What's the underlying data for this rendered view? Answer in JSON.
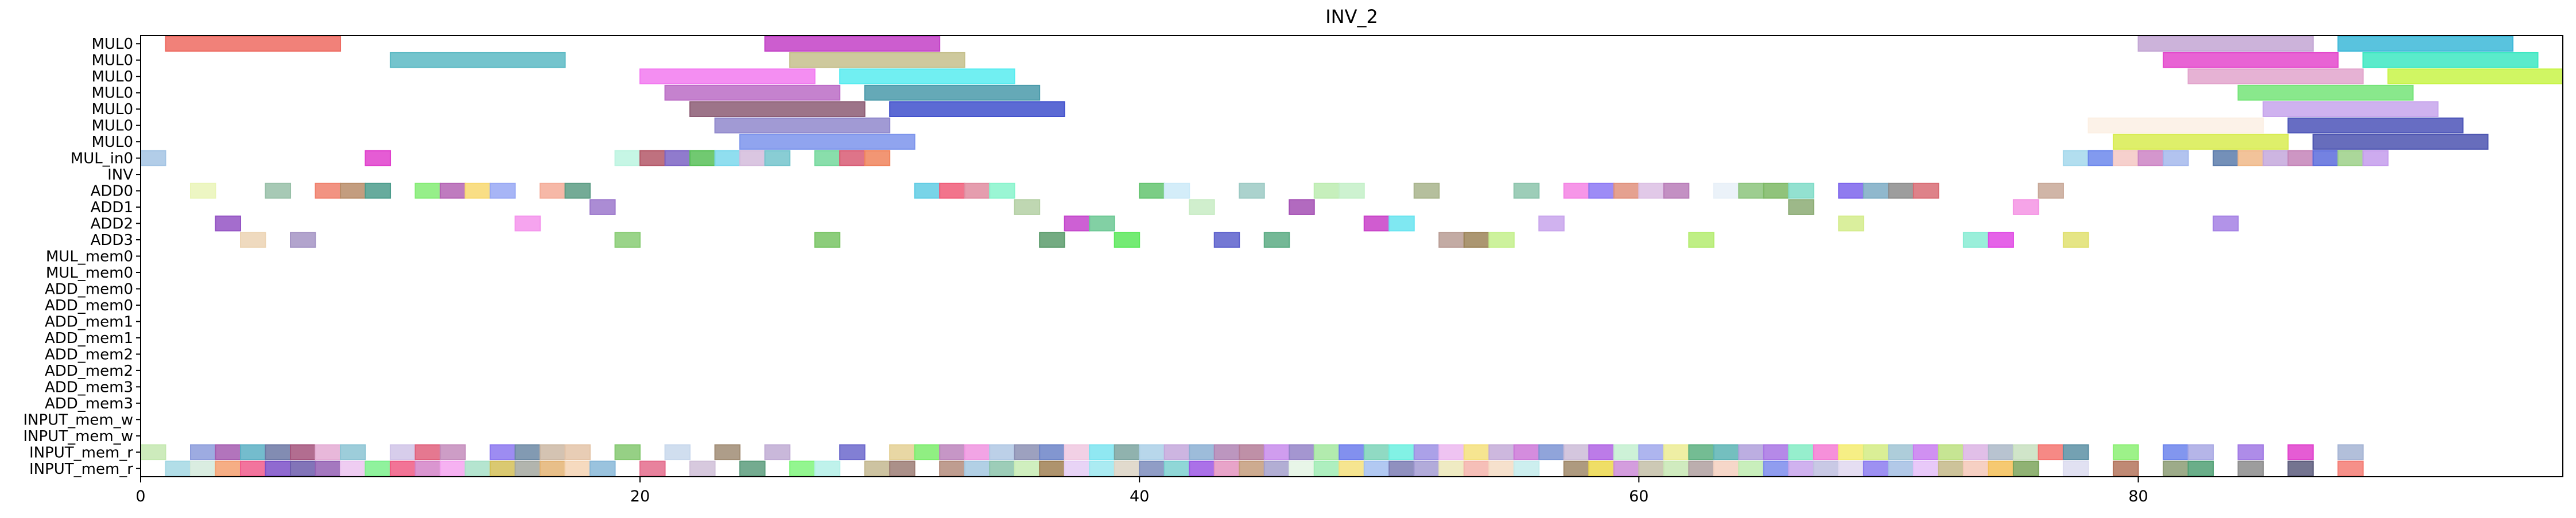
{
  "chart_data": {
    "type": "gantt",
    "title": "INV_2",
    "xlabel": "",
    "ylabel": "",
    "xlim": [
      0,
      97
    ],
    "grid": false,
    "legend": "none",
    "xticks": [
      0,
      20,
      40,
      60,
      80
    ],
    "rows": [
      "MUL0",
      "MUL0",
      "MUL0",
      "MUL0",
      "MUL0",
      "MUL0",
      "MUL0",
      "MUL_in0",
      "INV",
      "ADD0",
      "ADD1",
      "ADD2",
      "ADD3",
      "MUL_mem0",
      "MUL_mem0",
      "ADD_mem0",
      "ADD_mem0",
      "ADD_mem1",
      "ADD_mem1",
      "ADD_mem2",
      "ADD_mem2",
      "ADD_mem3",
      "ADD_mem3",
      "INPUT_mem_w",
      "INPUT_mem_w",
      "INPUT_mem_r",
      "INPUT_mem_r"
    ],
    "bars": [
      [
        0,
        1,
        8,
        "#ee6b62"
      ],
      [
        0,
        25,
        32,
        "#c341c7"
      ],
      [
        0,
        80,
        87,
        "#c3a6d4"
      ],
      [
        0,
        88,
        95,
        "#3cb8d8"
      ],
      [
        1,
        10,
        17,
        "#5cbac4"
      ],
      [
        1,
        26,
        33,
        "#c5c08c"
      ],
      [
        1,
        81,
        88,
        "#e448cc"
      ],
      [
        1,
        89,
        96,
        "#3de8c2"
      ],
      [
        2,
        20,
        27,
        "#f27af0"
      ],
      [
        2,
        28,
        35,
        "#58ecf0"
      ],
      [
        2,
        82,
        89,
        "#e2a4cc"
      ],
      [
        2,
        90,
        97,
        "#c8f448"
      ],
      [
        3,
        21,
        28,
        "#bb6cc6"
      ],
      [
        3,
        29,
        36,
        "#4a9aaa"
      ],
      [
        3,
        84,
        91,
        "#74e478"
      ],
      [
        4,
        22,
        29,
        "#8c5c74"
      ],
      [
        4,
        30,
        37,
        "#4050cc"
      ],
      [
        4,
        85,
        92,
        "#c7a4ec"
      ],
      [
        5,
        23,
        30,
        "#9088cc"
      ],
      [
        5,
        86,
        93,
        "#4c54b8"
      ],
      [
        5,
        78,
        85,
        "#fcf0e4"
      ],
      [
        6,
        24,
        31,
        "#7c94ec"
      ],
      [
        6,
        79,
        86,
        "#d8ec50"
      ],
      [
        6,
        87,
        94,
        "#4c54b0"
      ],
      [
        7,
        0,
        1,
        "#a4c4e4"
      ],
      [
        7,
        9,
        10,
        "#e040cc"
      ],
      [
        7,
        19,
        20,
        "#bcf4e0"
      ],
      [
        7,
        20,
        21,
        "#b45868"
      ],
      [
        7,
        21,
        22,
        "#7c64c4"
      ],
      [
        7,
        22,
        23,
        "#58c058"
      ],
      [
        7,
        23,
        24,
        "#7cd8ec"
      ],
      [
        7,
        24,
        25,
        "#d4bcdc"
      ],
      [
        7,
        25,
        26,
        "#74c4cc"
      ],
      [
        7,
        27,
        28,
        "#74d89c"
      ],
      [
        7,
        28,
        29,
        "#d85c74"
      ],
      [
        7,
        29,
        30,
        "#f0845c"
      ],
      [
        7,
        77,
        78,
        "#a4d8ec"
      ],
      [
        7,
        78,
        79,
        "#6c88ec"
      ],
      [
        7,
        79,
        80,
        "#f4c8c4"
      ],
      [
        7,
        80,
        81,
        "#cc84c4"
      ],
      [
        7,
        81,
        82,
        "#a4b8ec"
      ],
      [
        7,
        83,
        84,
        "#5c7cac"
      ],
      [
        7,
        84,
        85,
        "#f0b888"
      ],
      [
        7,
        85,
        86,
        "#c4a8dc"
      ],
      [
        7,
        86,
        87,
        "#c484b8"
      ],
      [
        7,
        87,
        88,
        "#5c6cdc"
      ],
      [
        7,
        88,
        89,
        "#9cd088"
      ],
      [
        7,
        89,
        90,
        "#c49cec"
      ],
      [
        9,
        2,
        3,
        "#eaf5b8"
      ],
      [
        9,
        5,
        6,
        "#98c0a8"
      ],
      [
        9,
        7,
        8,
        "#f0806c"
      ],
      [
        9,
        8,
        9,
        "#b88c68"
      ],
      [
        9,
        9,
        10,
        "#4c9c8c"
      ],
      [
        9,
        11,
        12,
        "#84ec74"
      ],
      [
        9,
        12,
        13,
        "#b464b4"
      ],
      [
        9,
        13,
        14,
        "#f8d870"
      ],
      [
        9,
        14,
        15,
        "#98a8f4"
      ],
      [
        9,
        16,
        17,
        "#f4ac98"
      ],
      [
        9,
        17,
        18,
        "#5c9c84"
      ],
      [
        9,
        31,
        32,
        "#60cce4"
      ],
      [
        9,
        32,
        33,
        "#f05c78"
      ],
      [
        9,
        33,
        34,
        "#e08ca0"
      ],
      [
        9,
        34,
        35,
        "#88f4cc"
      ],
      [
        9,
        40,
        41,
        "#64c470"
      ],
      [
        9,
        41,
        42,
        "#cceaf8"
      ],
      [
        9,
        44,
        45,
        "#9ccac4"
      ],
      [
        9,
        47,
        48,
        "#bcecb0"
      ],
      [
        9,
        48,
        49,
        "#c4f0c8"
      ],
      [
        9,
        51,
        52,
        "#a8b48c"
      ],
      [
        9,
        55,
        56,
        "#8cc4ac"
      ],
      [
        9,
        57,
        58,
        "#f484e4"
      ],
      [
        9,
        58,
        59,
        "#8c78f4"
      ],
      [
        9,
        59,
        60,
        "#e0907c"
      ],
      [
        9,
        60,
        61,
        "#dcc0e4"
      ],
      [
        9,
        61,
        62,
        "#b87cb8"
      ],
      [
        9,
        63,
        64,
        "#e8f0f8"
      ],
      [
        9,
        64,
        65,
        "#8cc47c"
      ],
      [
        9,
        65,
        66,
        "#7cb864"
      ],
      [
        9,
        66,
        67,
        "#80dcc8"
      ],
      [
        9,
        68,
        69,
        "#7c64ec"
      ],
      [
        9,
        69,
        70,
        "#7cacc4"
      ],
      [
        9,
        70,
        71,
        "#8c8c8c"
      ],
      [
        9,
        71,
        72,
        "#d86c74"
      ],
      [
        9,
        76,
        77,
        "#c8a898"
      ],
      [
        10,
        18,
        19,
        "#9c78cc"
      ],
      [
        10,
        35,
        36,
        "#b4d0a4"
      ],
      [
        10,
        42,
        43,
        "#c8ecc4"
      ],
      [
        10,
        46,
        47,
        "#a450b4"
      ],
      [
        10,
        66,
        67,
        "#8cac74"
      ],
      [
        10,
        75,
        76,
        "#f494e4"
      ],
      [
        11,
        3,
        4,
        "#9454c4"
      ],
      [
        11,
        15,
        16,
        "#f494ec"
      ],
      [
        11,
        37,
        38,
        "#c444cc"
      ],
      [
        11,
        38,
        39,
        "#6cc894"
      ],
      [
        11,
        49,
        50,
        "#c840c8"
      ],
      [
        11,
        50,
        51,
        "#68e4f0"
      ],
      [
        11,
        56,
        57,
        "#c8a4ec"
      ],
      [
        11,
        68,
        69,
        "#d4ec8c"
      ],
      [
        11,
        83,
        84,
        "#a480e4"
      ],
      [
        12,
        4,
        5,
        "#ecd4b4"
      ],
      [
        12,
        6,
        7,
        "#a494c4"
      ],
      [
        12,
        19,
        20,
        "#88cc74"
      ],
      [
        12,
        27,
        28,
        "#78c464"
      ],
      [
        12,
        36,
        37,
        "#5c9c6c"
      ],
      [
        12,
        39,
        40,
        "#5ce85c"
      ],
      [
        12,
        43,
        44,
        "#5c60cc"
      ],
      [
        12,
        45,
        46,
        "#5cac84"
      ],
      [
        12,
        52,
        53,
        "#b89c94"
      ],
      [
        12,
        53,
        54,
        "#9c8458"
      ],
      [
        12,
        54,
        55,
        "#c4f08c"
      ],
      [
        12,
        62,
        63,
        "#b4ec70"
      ],
      [
        12,
        73,
        74,
        "#88ecd4"
      ],
      [
        12,
        74,
        75,
        "#e048e4"
      ],
      [
        12,
        77,
        78,
        "#e0e070"
      ],
      [
        25,
        0,
        1,
        "#c4e8b0"
      ],
      [
        25,
        2,
        3,
        "#8c9cdc"
      ],
      [
        25,
        3,
        4,
        "#a45cb0"
      ],
      [
        25,
        4,
        5,
        "#5cb0c4"
      ],
      [
        25,
        5,
        6,
        "#6c78a4"
      ],
      [
        25,
        6,
        7,
        "#a4547c"
      ],
      [
        25,
        7,
        8,
        "#e4acd4"
      ],
      [
        25,
        8,
        9,
        "#8cc4d4"
      ],
      [
        25,
        10,
        11,
        "#d0c4e8"
      ],
      [
        25,
        11,
        12,
        "#e0607c"
      ],
      [
        25,
        12,
        13,
        "#c48cbc"
      ],
      [
        25,
        14,
        15,
        "#8c78f0"
      ],
      [
        25,
        15,
        16,
        "#6c88a4"
      ],
      [
        25,
        16,
        17,
        "#ccb8a4"
      ],
      [
        25,
        17,
        18,
        "#e4c4a8"
      ],
      [
        25,
        19,
        20,
        "#84c870"
      ],
      [
        25,
        21,
        22,
        "#c8d8ec"
      ],
      [
        25,
        23,
        24,
        "#a08c74"
      ],
      [
        25,
        25,
        26,
        "#c0acd4"
      ],
      [
        25,
        28,
        29,
        "#6c68cc"
      ],
      [
        25,
        30,
        31,
        "#e4d094"
      ],
      [
        25,
        31,
        32,
        "#7cec6c"
      ],
      [
        25,
        32,
        33,
        "#bc84bc"
      ],
      [
        25,
        33,
        34,
        "#f094e0"
      ],
      [
        25,
        34,
        35,
        "#b0c8e4"
      ],
      [
        25,
        35,
        36,
        "#8c90b4"
      ],
      [
        25,
        36,
        37,
        "#6c84c8"
      ],
      [
        25,
        37,
        38,
        "#f0c8e0"
      ],
      [
        25,
        38,
        39,
        "#7ce4f0"
      ],
      [
        25,
        39,
        40,
        "#7ca4a0"
      ],
      [
        25,
        40,
        41,
        "#acd0e8"
      ],
      [
        25,
        41,
        42,
        "#c4a8dc"
      ],
      [
        25,
        42,
        43,
        "#8cb0d4"
      ],
      [
        25,
        43,
        44,
        "#b084b4"
      ],
      [
        25,
        44,
        45,
        "#b47c98"
      ],
      [
        25,
        45,
        46,
        "#c88cec"
      ],
      [
        25,
        46,
        47,
        "#9484c8"
      ],
      [
        25,
        47,
        48,
        "#a4e8a0"
      ],
      [
        25,
        48,
        49,
        "#6c7cec"
      ],
      [
        25,
        49,
        50,
        "#7cd4b8"
      ],
      [
        25,
        50,
        51,
        "#6cf0e0"
      ],
      [
        25,
        51,
        52,
        "#9c90e4"
      ],
      [
        25,
        52,
        53,
        "#ecb8f0"
      ],
      [
        25,
        53,
        54,
        "#f4e07c"
      ],
      [
        25,
        54,
        55,
        "#c4acd8"
      ],
      [
        25,
        55,
        56,
        "#cc78d8"
      ],
      [
        25,
        56,
        57,
        "#7c94d4"
      ],
      [
        25,
        57,
        58,
        "#ccbcd8"
      ],
      [
        25,
        58,
        59,
        "#b064e4"
      ],
      [
        25,
        59,
        60,
        "#c4f0d0"
      ],
      [
        25,
        60,
        61,
        "#a0a8ec"
      ],
      [
        25,
        61,
        62,
        "#ecec94"
      ],
      [
        25,
        62,
        63,
        "#5cb080"
      ],
      [
        25,
        63,
        64,
        "#5cb4b4"
      ],
      [
        25,
        64,
        65,
        "#b0a0dc"
      ],
      [
        25,
        65,
        66,
        "#a874e4"
      ],
      [
        25,
        66,
        67,
        "#84ecc4"
      ],
      [
        25,
        67,
        68,
        "#f47cd4"
      ],
      [
        25,
        68,
        69,
        "#f4ec70"
      ],
      [
        25,
        69,
        70,
        "#d4ec84"
      ],
      [
        25,
        70,
        71,
        "#a0c4d4"
      ],
      [
        25,
        71,
        72,
        "#c87cf0"
      ],
      [
        25,
        72,
        73,
        "#bce080"
      ],
      [
        25,
        73,
        74,
        "#dcb4e4"
      ],
      [
        25,
        74,
        75,
        "#acb8c8"
      ],
      [
        25,
        75,
        76,
        "#c8e0c0"
      ],
      [
        25,
        76,
        77,
        "#f47470"
      ],
      [
        25,
        77,
        78,
        "#5c90a4"
      ],
      [
        25,
        79,
        80,
        "#8cf074"
      ],
      [
        25,
        81,
        82,
        "#6c84ec"
      ],
      [
        25,
        82,
        83,
        "#a8a8e4"
      ],
      [
        25,
        84,
        85,
        "#a078e4"
      ],
      [
        25,
        86,
        87,
        "#e040cc"
      ],
      [
        25,
        88,
        89,
        "#a4b4d4"
      ],
      [
        26,
        1,
        2,
        "#a4d8e4"
      ],
      [
        26,
        2,
        3,
        "#d4eadc"
      ],
      [
        26,
        3,
        4,
        "#f4a070"
      ],
      [
        26,
        4,
        5,
        "#f05c8c"
      ],
      [
        26,
        5,
        6,
        "#7c50c8"
      ],
      [
        26,
        6,
        7,
        "#6c5cac"
      ],
      [
        26,
        7,
        8,
        "#9460b4"
      ],
      [
        26,
        8,
        9,
        "#ecc4f0"
      ],
      [
        26,
        9,
        10,
        "#7cf08c"
      ],
      [
        26,
        10,
        11,
        "#f05c84"
      ],
      [
        26,
        11,
        12,
        "#d484c8"
      ],
      [
        26,
        12,
        13,
        "#f4a4f0"
      ],
      [
        26,
        13,
        14,
        "#a8e0c8"
      ],
      [
        26,
        14,
        15,
        "#d4c058"
      ],
      [
        26,
        15,
        16,
        "#a4a8a0"
      ],
      [
        26,
        16,
        17,
        "#e4b474"
      ],
      [
        26,
        17,
        18,
        "#f4d4b4"
      ],
      [
        26,
        18,
        19,
        "#88b8d8"
      ],
      [
        26,
        20,
        21,
        "#e46c8c"
      ],
      [
        26,
        22,
        23,
        "#d0c0d8"
      ],
      [
        26,
        24,
        25,
        "#5c9c7c"
      ],
      [
        26,
        26,
        27,
        "#80f47c"
      ],
      [
        26,
        27,
        28,
        "#b4f0e8"
      ],
      [
        26,
        29,
        30,
        "#c4b890"
      ],
      [
        26,
        30,
        31,
        "#9c7c74"
      ],
      [
        26,
        32,
        33,
        "#b48c7c"
      ],
      [
        26,
        33,
        34,
        "#a4c8e0"
      ],
      [
        26,
        34,
        35,
        "#8cc4ac"
      ],
      [
        26,
        35,
        36,
        "#c8ecb4"
      ],
      [
        26,
        36,
        37,
        "#a08054"
      ],
      [
        26,
        37,
        38,
        "#e4ccf4"
      ],
      [
        26,
        38,
        39,
        "#9ce8f0"
      ],
      [
        26,
        39,
        40,
        "#dcd4c4"
      ],
      [
        26,
        40,
        41,
        "#7c8cbc"
      ],
      [
        26,
        41,
        42,
        "#7cd0d0"
      ],
      [
        26,
        42,
        43,
        "#9c58e4"
      ],
      [
        26,
        43,
        44,
        "#e494c0"
      ],
      [
        26,
        44,
        45,
        "#c49c7c"
      ],
      [
        26,
        45,
        46,
        "#a4a0cc"
      ],
      [
        26,
        46,
        47,
        "#e4f4e4"
      ],
      [
        26,
        47,
        48,
        "#a0ecb4"
      ],
      [
        26,
        48,
        49,
        "#f4e07c"
      ],
      [
        26,
        49,
        50,
        "#a4c0f0"
      ],
      [
        26,
        50,
        51,
        "#7c7cb4"
      ],
      [
        26,
        51,
        52,
        "#a49cd4"
      ],
      [
        26,
        52,
        53,
        "#ece8b8"
      ],
      [
        26,
        53,
        54,
        "#f4b4ac"
      ],
      [
        26,
        54,
        55,
        "#f4dcc4"
      ],
      [
        26,
        55,
        56,
        "#c4ecec"
      ],
      [
        26,
        57,
        58,
        "#a08868"
      ],
      [
        26,
        58,
        59,
        "#ecd84c"
      ],
      [
        26,
        59,
        60,
        "#cc8cd8"
      ],
      [
        26,
        60,
        61,
        "#c4c0a8"
      ],
      [
        26,
        61,
        62,
        "#c8e8b4"
      ],
      [
        26,
        62,
        63,
        "#b0a0a0"
      ],
      [
        26,
        63,
        64,
        "#f4d0c0"
      ],
      [
        26,
        64,
        65,
        "#c0ecb0"
      ],
      [
        26,
        65,
        66,
        "#7c8cec"
      ],
      [
        26,
        66,
        67,
        "#c8a4ec"
      ],
      [
        26,
        67,
        68,
        "#c0c0e0"
      ],
      [
        26,
        68,
        69,
        "#e0d8f0"
      ],
      [
        26,
        69,
        70,
        "#8c7cf0"
      ],
      [
        26,
        70,
        71,
        "#a4c0e4"
      ],
      [
        26,
        71,
        72,
        "#e4c0f8"
      ],
      [
        26,
        72,
        73,
        "#c4b888"
      ],
      [
        26,
        73,
        74,
        "#f4c8b8"
      ],
      [
        26,
        74,
        75,
        "#f4c058"
      ],
      [
        26,
        75,
        76,
        "#7ca45c"
      ],
      [
        26,
        77,
        78,
        "#dcdcf0"
      ],
      [
        26,
        79,
        80,
        "#b4745c"
      ],
      [
        26,
        81,
        82,
        "#8c9c74"
      ],
      [
        26,
        82,
        83,
        "#50a074"
      ],
      [
        26,
        84,
        85,
        "#8c8c8c"
      ],
      [
        26,
        86,
        87,
        "#5c5c7c"
      ],
      [
        26,
        88,
        89,
        "#f47c74"
      ]
    ]
  }
}
